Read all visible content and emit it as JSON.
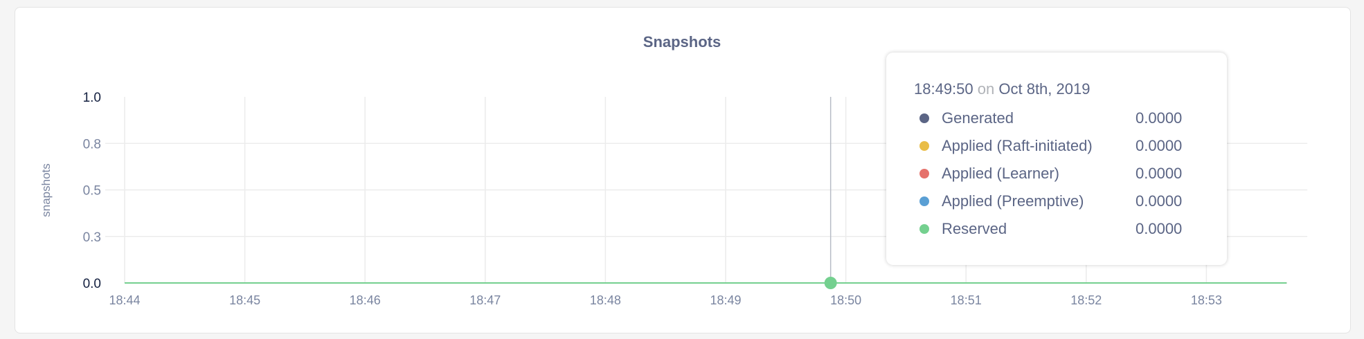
{
  "chart_data": {
    "type": "line",
    "title": "Snapshots",
    "ylabel": "snapshots",
    "xlabel": "",
    "ylim": [
      0,
      1.0
    ],
    "y_ticks": [
      "0.0",
      "0.3",
      "0.5",
      "0.8",
      "1.0"
    ],
    "y_tick_values": [
      0,
      0.25,
      0.5,
      0.75,
      1.0
    ],
    "x_ticks": [
      "18:44",
      "18:45",
      "18:46",
      "18:47",
      "18:48",
      "18:49",
      "18:50",
      "18:51",
      "18:52",
      "18:53"
    ],
    "x_range": [
      "18:44",
      "18:53:40"
    ],
    "grid": true,
    "series": [
      {
        "name": "Generated",
        "color": "#5b6585",
        "x": [
          "18:44",
          "18:53:40"
        ],
        "y": [
          0,
          0
        ]
      },
      {
        "name": "Applied (Raft-initiated)",
        "color": "#e9bd47",
        "x": [
          "18:44",
          "18:53:40"
        ],
        "y": [
          0,
          0
        ]
      },
      {
        "name": "Applied (Learner)",
        "color": "#e5716b",
        "x": [
          "18:44",
          "18:53:40"
        ],
        "y": [
          0,
          0
        ]
      },
      {
        "name": "Applied (Preemptive)",
        "color": "#5a9fd4",
        "x": [
          "18:44",
          "18:53:40"
        ],
        "y": [
          0,
          0
        ]
      },
      {
        "name": "Reserved",
        "color": "#74d08f",
        "x": [
          "18:44",
          "18:53:40"
        ],
        "y": [
          0,
          0
        ]
      }
    ],
    "hover": {
      "x": "18:49:50"
    }
  },
  "tooltip": {
    "time": "18:49:50",
    "on": "on",
    "date": "Oct 8th, 2019",
    "rows": [
      {
        "label": "Generated",
        "value": "0.0000",
        "color": "#5b6585"
      },
      {
        "label": "Applied (Raft-initiated)",
        "value": "0.0000",
        "color": "#e9bd47"
      },
      {
        "label": "Applied (Learner)",
        "value": "0.0000",
        "color": "#e5716b"
      },
      {
        "label": "Applied (Preemptive)",
        "value": "0.0000",
        "color": "#5a9fd4"
      },
      {
        "label": "Reserved",
        "value": "0.0000",
        "color": "#74d08f"
      }
    ]
  }
}
